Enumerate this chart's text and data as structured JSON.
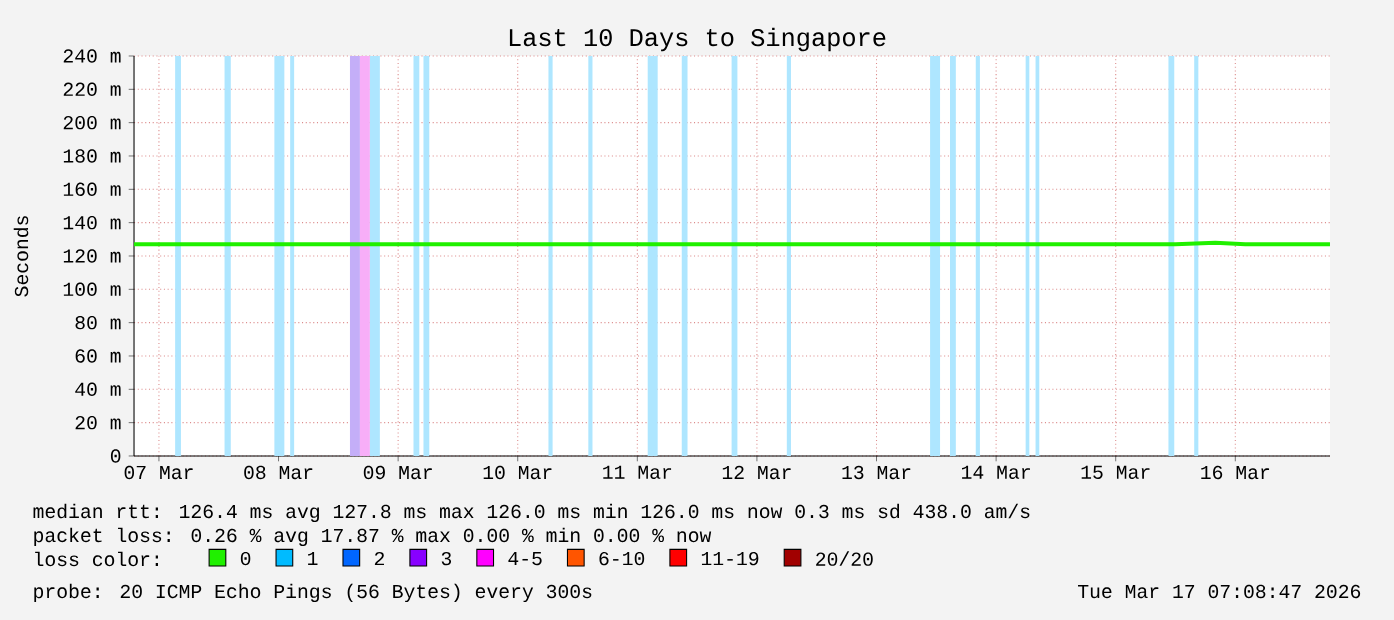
{
  "chart_data": [
    {
      "type": "line",
      "title": "Last 10 Days to Singapore",
      "ylabel": "Seconds",
      "x": [
        "2026-03-07T07:00",
        "2026-03-08T00:00",
        "2026-03-09T00:00",
        "2026-03-10T00:00",
        "2026-03-11T00:00",
        "2026-03-12T00:00",
        "2026-03-13T00:00",
        "2026-03-14T00:00",
        "2026-03-15T00:00",
        "2026-03-16T00:00",
        "2026-03-16T08:00",
        "2026-03-16T14:00",
        "2026-03-17T07:00"
      ],
      "series": [
        {
          "name": "0",
          "color": "#20f000",
          "values": [
            127,
            127,
            127,
            127,
            127,
            127,
            127,
            127,
            127,
            127,
            128,
            127,
            127
          ]
        },
        {
          "name": "1",
          "color": "#00bbff",
          "values": [
            null,
            null,
            null,
            null,
            null,
            null,
            null,
            null,
            null,
            null,
            null,
            null,
            null
          ]
        },
        {
          "name": "2",
          "color": "#0066ff",
          "values": [
            null,
            null,
            null,
            null,
            null,
            null,
            null,
            null,
            null,
            null,
            null,
            null,
            null
          ]
        },
        {
          "name": "3",
          "color": "#8800ff",
          "values": [
            null,
            null,
            null,
            null,
            null,
            null,
            null,
            null,
            null,
            null,
            null,
            null,
            null
          ]
        },
        {
          "name": "4-5",
          "color": "#ff00ff",
          "values": [
            null,
            null,
            null,
            null,
            null,
            null,
            null,
            null,
            null,
            null,
            null,
            null,
            null
          ]
        },
        {
          "name": "6-10",
          "color": "#ff5500",
          "values": [
            null,
            null,
            null,
            null,
            null,
            null,
            null,
            null,
            null,
            null,
            null,
            null,
            null
          ]
        },
        {
          "name": "11-19",
          "color": "#ff0000",
          "values": [
            null,
            null,
            null,
            null,
            null,
            null,
            null,
            null,
            null,
            null,
            null,
            null,
            null
          ]
        },
        {
          "name": "20/20",
          "color": "#a10000",
          "values": [
            null,
            null,
            null,
            null,
            null,
            null,
            null,
            null,
            null,
            null,
            null,
            null,
            null
          ]
        }
      ],
      "grid": true,
      "legend": "bottom",
      "legend_title": "loss color:",
      "xlim": [
        "2026-03-07T07:00",
        "2026-03-17T07:00"
      ],
      "xticks": [
        {
          "value": "2026-03-07T12:00",
          "label": "07 Mar"
        },
        {
          "value": "2026-03-08T12:00",
          "label": "08 Mar"
        },
        {
          "value": "2026-03-09T12:00",
          "label": "09 Mar"
        },
        {
          "value": "2026-03-10T12:00",
          "label": "10 Mar"
        },
        {
          "value": "2026-03-11T12:00",
          "label": "11 Mar"
        },
        {
          "value": "2026-03-12T12:00",
          "label": "12 Mar"
        },
        {
          "value": "2026-03-13T12:00",
          "label": "13 Mar"
        },
        {
          "value": "2026-03-14T12:00",
          "label": "14 Mar"
        },
        {
          "value": "2026-03-15T12:00",
          "label": "15 Mar"
        },
        {
          "value": "2026-03-16T12:00",
          "label": "16 Mar"
        }
      ],
      "ylim": [
        0,
        240
      ],
      "yticks": [
        0,
        {
          "value": 20,
          "label": "20 m"
        },
        {
          "value": 40,
          "label": "40 m"
        },
        {
          "value": 60,
          "label": "60 m"
        },
        {
          "value": 80,
          "label": "80 m"
        },
        {
          "value": 100,
          "label": "100 m"
        },
        {
          "value": 120,
          "label": "120 m"
        },
        {
          "value": 140,
          "label": "140 m"
        },
        {
          "value": 160,
          "label": "160 m"
        },
        {
          "value": 180,
          "label": "180 m"
        },
        {
          "value": 200,
          "label": "200 m"
        },
        {
          "value": 220,
          "label": "220 m"
        },
        {
          "value": 240,
          "label": "240 m"
        }
      ],
      "bands": [
        {
          "axis": "x",
          "from": "2026-03-07T15:15",
          "to": "2026-03-07T16:25",
          "color": "#aee6ff"
        },
        {
          "axis": "x",
          "from": "2026-03-08T01:10",
          "to": "2026-03-08T02:25",
          "color": "#aee6ff"
        },
        {
          "axis": "x",
          "from": "2026-03-08T11:10",
          "to": "2026-03-08T13:10",
          "color": "#aee6ff"
        },
        {
          "axis": "x",
          "from": "2026-03-08T14:20",
          "to": "2026-03-08T15:10",
          "color": "#aee6ff"
        },
        {
          "axis": "x",
          "from": "2026-03-09T02:20",
          "to": "2026-03-09T04:20",
          "color": "#c4aef8"
        },
        {
          "axis": "x",
          "from": "2026-03-09T04:20",
          "to": "2026-03-09T06:20",
          "color": "#f7aef8"
        },
        {
          "axis": "x",
          "from": "2026-03-09T06:20",
          "to": "2026-03-09T08:20",
          "color": "#aee6ff"
        },
        {
          "axis": "x",
          "from": "2026-03-09T15:05",
          "to": "2026-03-09T16:15",
          "color": "#aee6ff"
        },
        {
          "axis": "x",
          "from": "2026-03-09T17:05",
          "to": "2026-03-09T18:15",
          "color": "#aee6ff"
        },
        {
          "axis": "x",
          "from": "2026-03-10T18:10",
          "to": "2026-03-10T19:00",
          "color": "#aee6ff"
        },
        {
          "axis": "x",
          "from": "2026-03-11T02:10",
          "to": "2026-03-11T03:00",
          "color": "#aee6ff"
        },
        {
          "axis": "x",
          "from": "2026-03-11T14:05",
          "to": "2026-03-11T16:05",
          "color": "#aee6ff"
        },
        {
          "axis": "x",
          "from": "2026-03-11T20:55",
          "to": "2026-03-11T22:05",
          "color": "#aee6ff"
        },
        {
          "axis": "x",
          "from": "2026-03-12T06:55",
          "to": "2026-03-12T08:05",
          "color": "#aee6ff"
        },
        {
          "axis": "x",
          "from": "2026-03-12T18:00",
          "to": "2026-03-12T18:50",
          "color": "#aee6ff"
        },
        {
          "axis": "x",
          "from": "2026-03-13T22:45",
          "to": "2026-03-14T00:45",
          "color": "#aee6ff"
        },
        {
          "axis": "x",
          "from": "2026-03-14T02:45",
          "to": "2026-03-14T03:55",
          "color": "#aee6ff"
        },
        {
          "axis": "x",
          "from": "2026-03-14T07:55",
          "to": "2026-03-14T08:45",
          "color": "#aee6ff"
        },
        {
          "axis": "x",
          "from": "2026-03-14T17:55",
          "to": "2026-03-14T18:40",
          "color": "#aee6ff"
        },
        {
          "axis": "x",
          "from": "2026-03-14T19:55",
          "to": "2026-03-14T20:40",
          "color": "#aee6ff"
        },
        {
          "axis": "x",
          "from": "2026-03-15T22:35",
          "to": "2026-03-15T23:45",
          "color": "#aee6ff"
        },
        {
          "axis": "x",
          "from": "2026-03-16T03:45",
          "to": "2026-03-16T04:35",
          "color": "#aee6ff"
        }
      ],
      "annotations": [
        "median rtt: 126.4 ms avg 127.8 ms max 126.0 ms min 126.0 ms now 0.3 ms sd 438.0 am/s",
        "packet loss: 0.26 % avg 17.87 % max 0.00 % min 0.00 % now",
        "probe: 20 ICMP Echo Pings (56 Bytes) every 300s",
        "Tue Mar 17 07:08:47 2026"
      ]
    }
  ]
}
